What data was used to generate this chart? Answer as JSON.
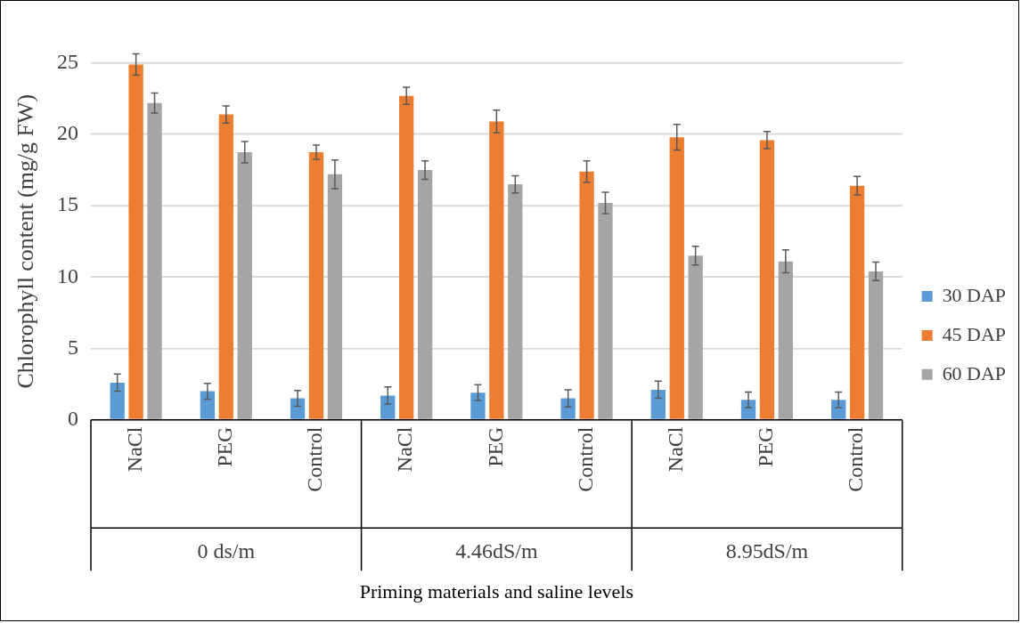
{
  "chart_data": {
    "type": "bar",
    "ylabel": "Chlorophyll content (mg/g FW)",
    "xlabel": "Priming materials and saline levels",
    "categories": [
      "NaCl",
      "PEG",
      "Control",
      "NaCl",
      "PEG",
      "Control",
      "NaCl",
      "PEG",
      "Control"
    ],
    "annotations": [
      "0 ds/m",
      "4.46dS/m",
      "8.95dS/m"
    ],
    "series": [
      {
        "name": "30 DAP",
        "color": "#5b9bd5",
        "values": [
          2.6,
          2.0,
          1.5,
          1.7,
          1.9,
          1.5,
          2.1,
          1.4,
          1.4
        ],
        "errors": [
          0.6,
          0.55,
          0.55,
          0.6,
          0.55,
          0.6,
          0.6,
          0.55,
          0.55
        ]
      },
      {
        "name": "45 DAP",
        "color": "#ed7d31",
        "values": [
          24.9,
          21.4,
          18.75,
          22.7,
          20.9,
          17.4,
          19.8,
          19.6,
          16.4
        ],
        "errors": [
          0.75,
          0.6,
          0.5,
          0.6,
          0.8,
          0.75,
          0.9,
          0.6,
          0.65
        ]
      },
      {
        "name": "60 DAP",
        "color": "#a5a5a5",
        "values": [
          22.2,
          18.75,
          17.2,
          17.5,
          16.5,
          15.2,
          11.5,
          11.1,
          10.4
        ],
        "errors": [
          0.7,
          0.75,
          1.0,
          0.65,
          0.6,
          0.75,
          0.65,
          0.8,
          0.65
        ]
      }
    ],
    "ylim": [
      0,
      25
    ],
    "yticks": [
      0,
      5,
      10,
      15,
      20,
      25
    ],
    "grid": "y",
    "legend": "right"
  }
}
